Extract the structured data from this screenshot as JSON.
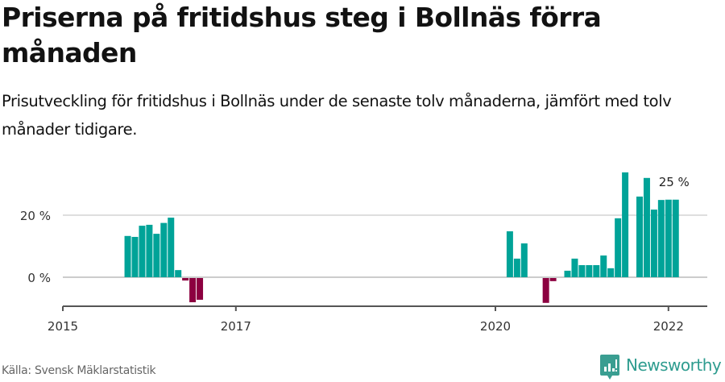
{
  "header": {
    "title": "Priserna på fritidshus steg i Bollnäs förra månaden",
    "subtitle": "Prisutveckling för fritidshus i Bollnäs under de senaste tolv månaderna, jämfört med tolv månader tidigare."
  },
  "footer": {
    "source": "Källa: Svensk Mäklarstatistik",
    "logo_text": "Newsworthy"
  },
  "colors": {
    "positive": "#00A398",
    "negative": "#8C0040",
    "gridline": "#dedede",
    "zeroline": "#cccccc",
    "axis": "#555555",
    "logo": "#2e9c8f"
  },
  "chart_data": {
    "type": "bar",
    "title": "Priserna på fritidshus steg i Bollnäs förra månaden",
    "subtitle": "Prisutveckling för fritidshus i Bollnäs under de senaste tolv månaderna, jämfört med tolv månader tidigare.",
    "xlabel": "",
    "ylabel": "",
    "ylim": [
      -9.5,
      35
    ],
    "y_ticks": [
      {
        "value": 0,
        "label": "0 %"
      },
      {
        "value": 20,
        "label": "20 %"
      }
    ],
    "x_ticks": [
      {
        "date": "2015-01",
        "label": "2015"
      },
      {
        "date": "2017-01",
        "label": "2017"
      },
      {
        "date": "2020-01",
        "label": "2020"
      },
      {
        "date": "2022-01",
        "label": "2022"
      }
    ],
    "xlim": [
      "2015-01",
      "2022-05"
    ],
    "grid": true,
    "annotation": {
      "date": "2022-02",
      "label": "25 %"
    },
    "categories": [
      "2015-10",
      "2015-11",
      "2015-12",
      "2016-01",
      "2016-02",
      "2016-03",
      "2016-04",
      "2016-05",
      "2016-06",
      "2016-07",
      "2016-08",
      "2020-03",
      "2020-04",
      "2020-05",
      "2020-08",
      "2020-09",
      "2020-11",
      "2020-12",
      "2021-01",
      "2021-02",
      "2021-03",
      "2021-04",
      "2021-05",
      "2021-06",
      "2021-07",
      "2021-09",
      "2021-10",
      "2021-11",
      "2021-12",
      "2022-01",
      "2022-02"
    ],
    "values": [
      13.3,
      13.0,
      16.6,
      16.9,
      14.0,
      17.5,
      19.2,
      2.3,
      -0.8,
      -7.8,
      -7.0,
      14.8,
      6.0,
      10.9,
      -8.0,
      -1.0,
      2.1,
      6.0,
      3.9,
      3.9,
      3.9,
      7.0,
      2.9,
      19.0,
      33.8,
      26.0,
      32.0,
      21.8,
      24.9,
      25.0,
      25.0
    ]
  }
}
